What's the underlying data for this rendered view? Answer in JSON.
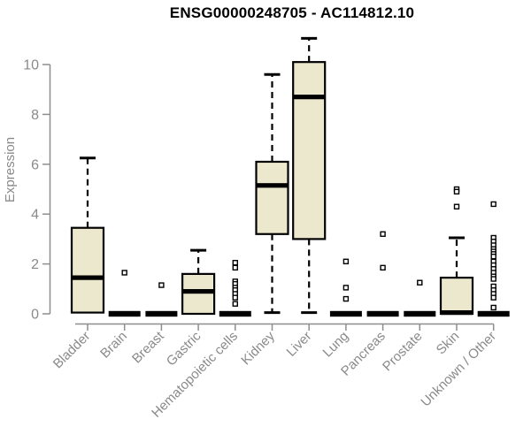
{
  "chart_data": {
    "type": "boxplot",
    "title": "ENSG00000248705 - AC114812.10",
    "ylabel": "Expression",
    "yticks": [
      0,
      2,
      4,
      6,
      8,
      10
    ],
    "ylim": [
      0,
      11.2
    ],
    "grid": false,
    "legend": "none",
    "style": {
      "box_fill": "#ECE8CD",
      "box_stroke": "#000000",
      "axis_color": "#8E8E8E",
      "text_color": "#8A8A8A",
      "title_color": "#000000",
      "background": "#FFFFFF"
    },
    "categories": [
      "Bladder",
      "Brain",
      "Breast",
      "Gastric",
      "Hematopoietic cells",
      "Kidney",
      "Liver",
      "Lung",
      "Pancreas",
      "Prostate",
      "Skin",
      "Unknown / Other"
    ],
    "series": [
      {
        "category": "Bladder",
        "low": 0.05,
        "q1": 0.05,
        "median": 1.45,
        "q3": 3.45,
        "high": 6.25,
        "outliers": []
      },
      {
        "category": "Brain",
        "low": 0,
        "q1": 0,
        "median": 0,
        "q3": 0,
        "high": 0,
        "outliers": [
          1.65
        ]
      },
      {
        "category": "Breast",
        "low": 0,
        "q1": 0,
        "median": 0,
        "q3": 0,
        "high": 0,
        "outliers": [
          1.15
        ]
      },
      {
        "category": "Gastric",
        "low": 0,
        "q1": 0,
        "median": 0.9,
        "q3": 1.6,
        "high": 2.55,
        "outliers": []
      },
      {
        "category": "Hematopoietic cells",
        "low": 0,
        "q1": 0,
        "median": 0,
        "q3": 0,
        "high": 0,
        "outliers": [
          2.05,
          1.85,
          1.3,
          1.2,
          1.05,
          0.95,
          0.8,
          0.65,
          0.4
        ]
      },
      {
        "category": "Kidney",
        "low": 0.05,
        "q1": 3.2,
        "median": 5.15,
        "q3": 6.1,
        "high": 9.6,
        "outliers": []
      },
      {
        "category": "Liver",
        "low": 0.05,
        "q1": 3.0,
        "median": 8.7,
        "q3": 10.1,
        "high": 11.05,
        "outliers": []
      },
      {
        "category": "Lung",
        "low": 0,
        "q1": 0,
        "median": 0,
        "q3": 0,
        "high": 0,
        "outliers": [
          2.1,
          1.05,
          0.6
        ]
      },
      {
        "category": "Pancreas",
        "low": 0,
        "q1": 0,
        "median": 0,
        "q3": 0,
        "high": 0,
        "outliers": [
          3.2,
          1.85
        ]
      },
      {
        "category": "Prostate",
        "low": 0,
        "q1": 0,
        "median": 0,
        "q3": 0,
        "high": 0,
        "outliers": [
          1.25
        ]
      },
      {
        "category": "Skin",
        "low": 0,
        "q1": 0,
        "median": 0.05,
        "q3": 1.45,
        "high": 3.05,
        "outliers": [
          5.0,
          4.9,
          4.3
        ]
      },
      {
        "category": "Unknown / Other",
        "low": 0,
        "q1": 0,
        "median": 0,
        "q3": 0,
        "high": 0,
        "outliers": [
          4.4,
          3.05,
          2.9,
          2.75,
          2.6,
          2.5,
          2.4,
          2.3,
          2.1,
          1.95,
          1.8,
          1.65,
          1.5,
          1.4,
          1.1,
          0.95,
          0.8,
          0.65,
          0.25
        ]
      }
    ]
  }
}
